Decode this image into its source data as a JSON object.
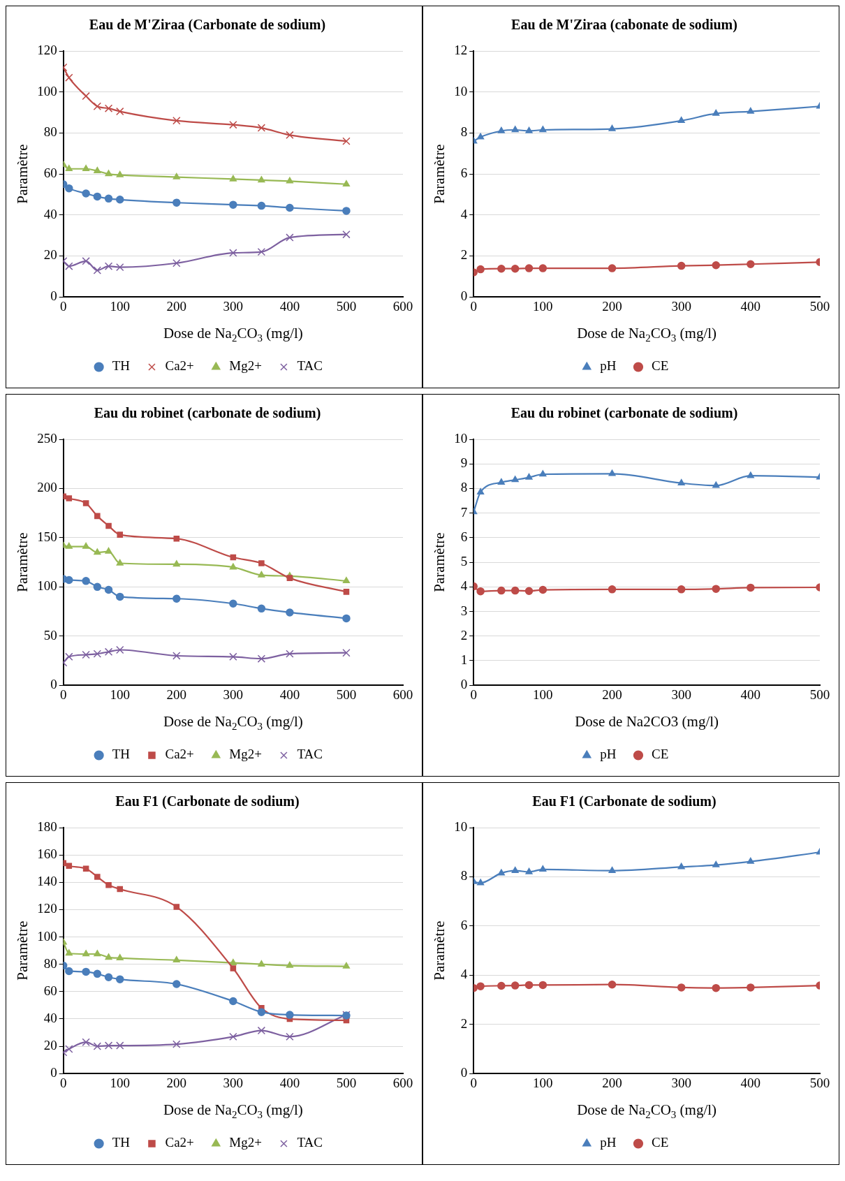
{
  "chart_data": [
    {
      "type": "line",
      "title": "Eau de M'Ziraa (Carbonate de sodium)",
      "xlabel": "Dose de Na$_{2}$CO$_{3}$ (mg/l)",
      "ylabel": "Paramètre",
      "x": [
        0,
        10,
        40,
        60,
        80,
        100,
        200,
        300,
        350,
        400,
        500
      ],
      "xlim": [
        0,
        600
      ],
      "xticks": [
        0,
        100,
        200,
        300,
        400,
        500,
        600
      ],
      "ylim": [
        0,
        120
      ],
      "yticks": [
        0,
        20,
        40,
        60,
        80,
        100,
        120
      ],
      "grid": "y",
      "legend": "bottom",
      "series": [
        {
          "name": "TH",
          "color": "#4a7ebb",
          "marker": "circle",
          "values": [
            55,
            53,
            50.5,
            49,
            48,
            47.5,
            46,
            45,
            44.5,
            43.5,
            42
          ]
        },
        {
          "name": "Ca2+",
          "color": "#be4b48",
          "marker": "cross",
          "values": [
            112,
            107,
            98,
            93,
            92,
            90.5,
            86,
            84,
            82.5,
            79,
            76
          ]
        },
        {
          "name": "Mg2+",
          "color": "#98b954",
          "marker": "triangle",
          "values": [
            64.5,
            62.5,
            62.5,
            61.5,
            60,
            59.5,
            58.5,
            57.5,
            57,
            56.5,
            55
          ]
        },
        {
          "name": "TAC",
          "color": "#7d60a0",
          "marker": "cross",
          "values": [
            17.5,
            15,
            17.5,
            13,
            15,
            14.5,
            16.5,
            21.5,
            22,
            29,
            30.5
          ]
        }
      ]
    },
    {
      "type": "line",
      "title": "Eau de M'Ziraa (cabonate de sodium)",
      "xlabel": "Dose de Na$_{2}$CO$_{3}$ (mg/l)",
      "ylabel": "Paramètre",
      "x": [
        0,
        10,
        40,
        60,
        80,
        100,
        200,
        300,
        350,
        400,
        500
      ],
      "xlim": [
        0,
        500
      ],
      "xticks": [
        0,
        100,
        200,
        300,
        400,
        500
      ],
      "ylim": [
        0,
        12
      ],
      "yticks": [
        0,
        2,
        4,
        6,
        8,
        10,
        12
      ],
      "grid": "y",
      "legend": "bottom",
      "series": [
        {
          "name": "pH",
          "color": "#4a7ebb",
          "marker": "triangle",
          "values": [
            7.6,
            7.8,
            8.1,
            8.15,
            8.1,
            8.15,
            8.2,
            8.6,
            8.95,
            9.05,
            9.3
          ]
        },
        {
          "name": "CE",
          "color": "#be4b48",
          "marker": "circle",
          "values": [
            1.2,
            1.35,
            1.38,
            1.38,
            1.4,
            1.4,
            1.4,
            1.52,
            1.55,
            1.6,
            1.7
          ]
        }
      ]
    },
    {
      "type": "line",
      "title": "Eau du robinet (carbonate de sodium)",
      "xlabel": "Dose de Na$_{2}$CO$_{3}$ (mg/l)",
      "ylabel": "Paramètre",
      "x": [
        0,
        10,
        40,
        60,
        80,
        100,
        200,
        300,
        350,
        400,
        500
      ],
      "xlim": [
        0,
        600
      ],
      "xticks": [
        0,
        100,
        200,
        300,
        400,
        500,
        600
      ],
      "ylim": [
        0,
        250
      ],
      "yticks": [
        0,
        50,
        100,
        150,
        200,
        250
      ],
      "grid": "y",
      "legend": "bottom",
      "series": [
        {
          "name": "TH",
          "color": "#4a7ebb",
          "marker": "circle",
          "values": [
            108,
            107,
            106,
            100,
            97,
            90,
            88,
            83,
            78,
            74,
            68
          ]
        },
        {
          "name": "Ca2+",
          "color": "#be4b48",
          "marker": "square",
          "values": [
            192,
            190,
            185,
            172,
            162,
            153,
            149,
            130,
            124,
            109,
            95
          ]
        },
        {
          "name": "Mg2+",
          "color": "#98b954",
          "marker": "triangle",
          "values": [
            142,
            141,
            141,
            135,
            136,
            124,
            123,
            120,
            112,
            111,
            106
          ]
        },
        {
          "name": "TAC",
          "color": "#7d60a0",
          "marker": "cross",
          "values": [
            23,
            29,
            31,
            32,
            34,
            36,
            30,
            29,
            27,
            32,
            33
          ]
        }
      ]
    },
    {
      "type": "line",
      "title": "Eau du robinet (carbonate de sodium)",
      "xlabel": "Dose de Na2CO3 (mg/l)",
      "ylabel": "Paramètre",
      "x": [
        0,
        10,
        40,
        60,
        80,
        100,
        200,
        300,
        350,
        400,
        500
      ],
      "xlim": [
        0,
        500
      ],
      "xticks": [
        0,
        100,
        200,
        300,
        400,
        500
      ],
      "ylim": [
        0,
        10
      ],
      "yticks": [
        0,
        1,
        2,
        3,
        4,
        5,
        6,
        7,
        8,
        9,
        10
      ],
      "grid": "y",
      "legend": "bottom",
      "series": [
        {
          "name": "pH",
          "color": "#4a7ebb",
          "marker": "triangle",
          "values": [
            7.05,
            7.85,
            8.25,
            8.35,
            8.45,
            8.58,
            8.6,
            8.22,
            8.12,
            8.52,
            8.46
          ]
        },
        {
          "name": "CE",
          "color": "#be4b48",
          "marker": "circle",
          "values": [
            4.02,
            3.82,
            3.85,
            3.85,
            3.83,
            3.88,
            3.9,
            3.9,
            3.92,
            3.97,
            3.98
          ]
        }
      ]
    },
    {
      "type": "line",
      "title": "Eau F1 (Carbonate de sodium)",
      "xlabel": "Dose de Na$_{2}$CO$_{3}$ (mg/l)",
      "ylabel": "Paramètre",
      "x": [
        0,
        10,
        40,
        60,
        80,
        100,
        200,
        300,
        350,
        400,
        500
      ],
      "xlim": [
        0,
        600
      ],
      "xticks": [
        0,
        100,
        200,
        300,
        400,
        500,
        600
      ],
      "ylim": [
        0,
        180
      ],
      "yticks": [
        0,
        20,
        40,
        60,
        80,
        100,
        120,
        140,
        160,
        180
      ],
      "grid": "y",
      "legend": "bottom",
      "series": [
        {
          "name": "TH",
          "color": "#4a7ebb",
          "marker": "circle",
          "values": [
            79,
            75,
            74.5,
            73,
            70.5,
            69,
            65.5,
            53,
            45,
            43,
            42.5
          ]
        },
        {
          "name": "Ca2+",
          "color": "#be4b48",
          "marker": "square",
          "values": [
            154,
            152,
            150,
            144,
            138,
            135,
            122,
            77,
            48,
            40,
            39
          ]
        },
        {
          "name": "Mg2+",
          "color": "#98b954",
          "marker": "triangle",
          "values": [
            96,
            88,
            87.5,
            87.5,
            85,
            84.5,
            83,
            81,
            80,
            79,
            78.5
          ]
        },
        {
          "name": "TAC",
          "color": "#7d60a0",
          "marker": "cross",
          "values": [
            15.5,
            18,
            23,
            20,
            20.5,
            20.5,
            21.5,
            27,
            31.5,
            27,
            43
          ]
        }
      ]
    },
    {
      "type": "line",
      "title": "Eau F1 (Carbonate de sodium)",
      "xlabel": "Dose de Na$_{2}$CO$_{3}$ (mg/l)",
      "ylabel": "Paramètre",
      "x": [
        0,
        10,
        40,
        60,
        80,
        100,
        200,
        300,
        350,
        400,
        500
      ],
      "xlim": [
        0,
        500
      ],
      "xticks": [
        0,
        100,
        200,
        300,
        400,
        500
      ],
      "ylim": [
        0,
        10
      ],
      "yticks": [
        0,
        2,
        4,
        6,
        8,
        10
      ],
      "grid": "y",
      "legend": "bottom",
      "series": [
        {
          "name": "pH",
          "color": "#4a7ebb",
          "marker": "triangle",
          "values": [
            7.8,
            7.75,
            8.15,
            8.25,
            8.2,
            8.3,
            8.25,
            8.4,
            8.48,
            8.62,
            9.0
          ]
        },
        {
          "name": "CE",
          "color": "#be4b48",
          "marker": "circle",
          "values": [
            3.48,
            3.55,
            3.57,
            3.58,
            3.6,
            3.6,
            3.62,
            3.5,
            3.48,
            3.5,
            3.58
          ]
        }
      ]
    }
  ]
}
